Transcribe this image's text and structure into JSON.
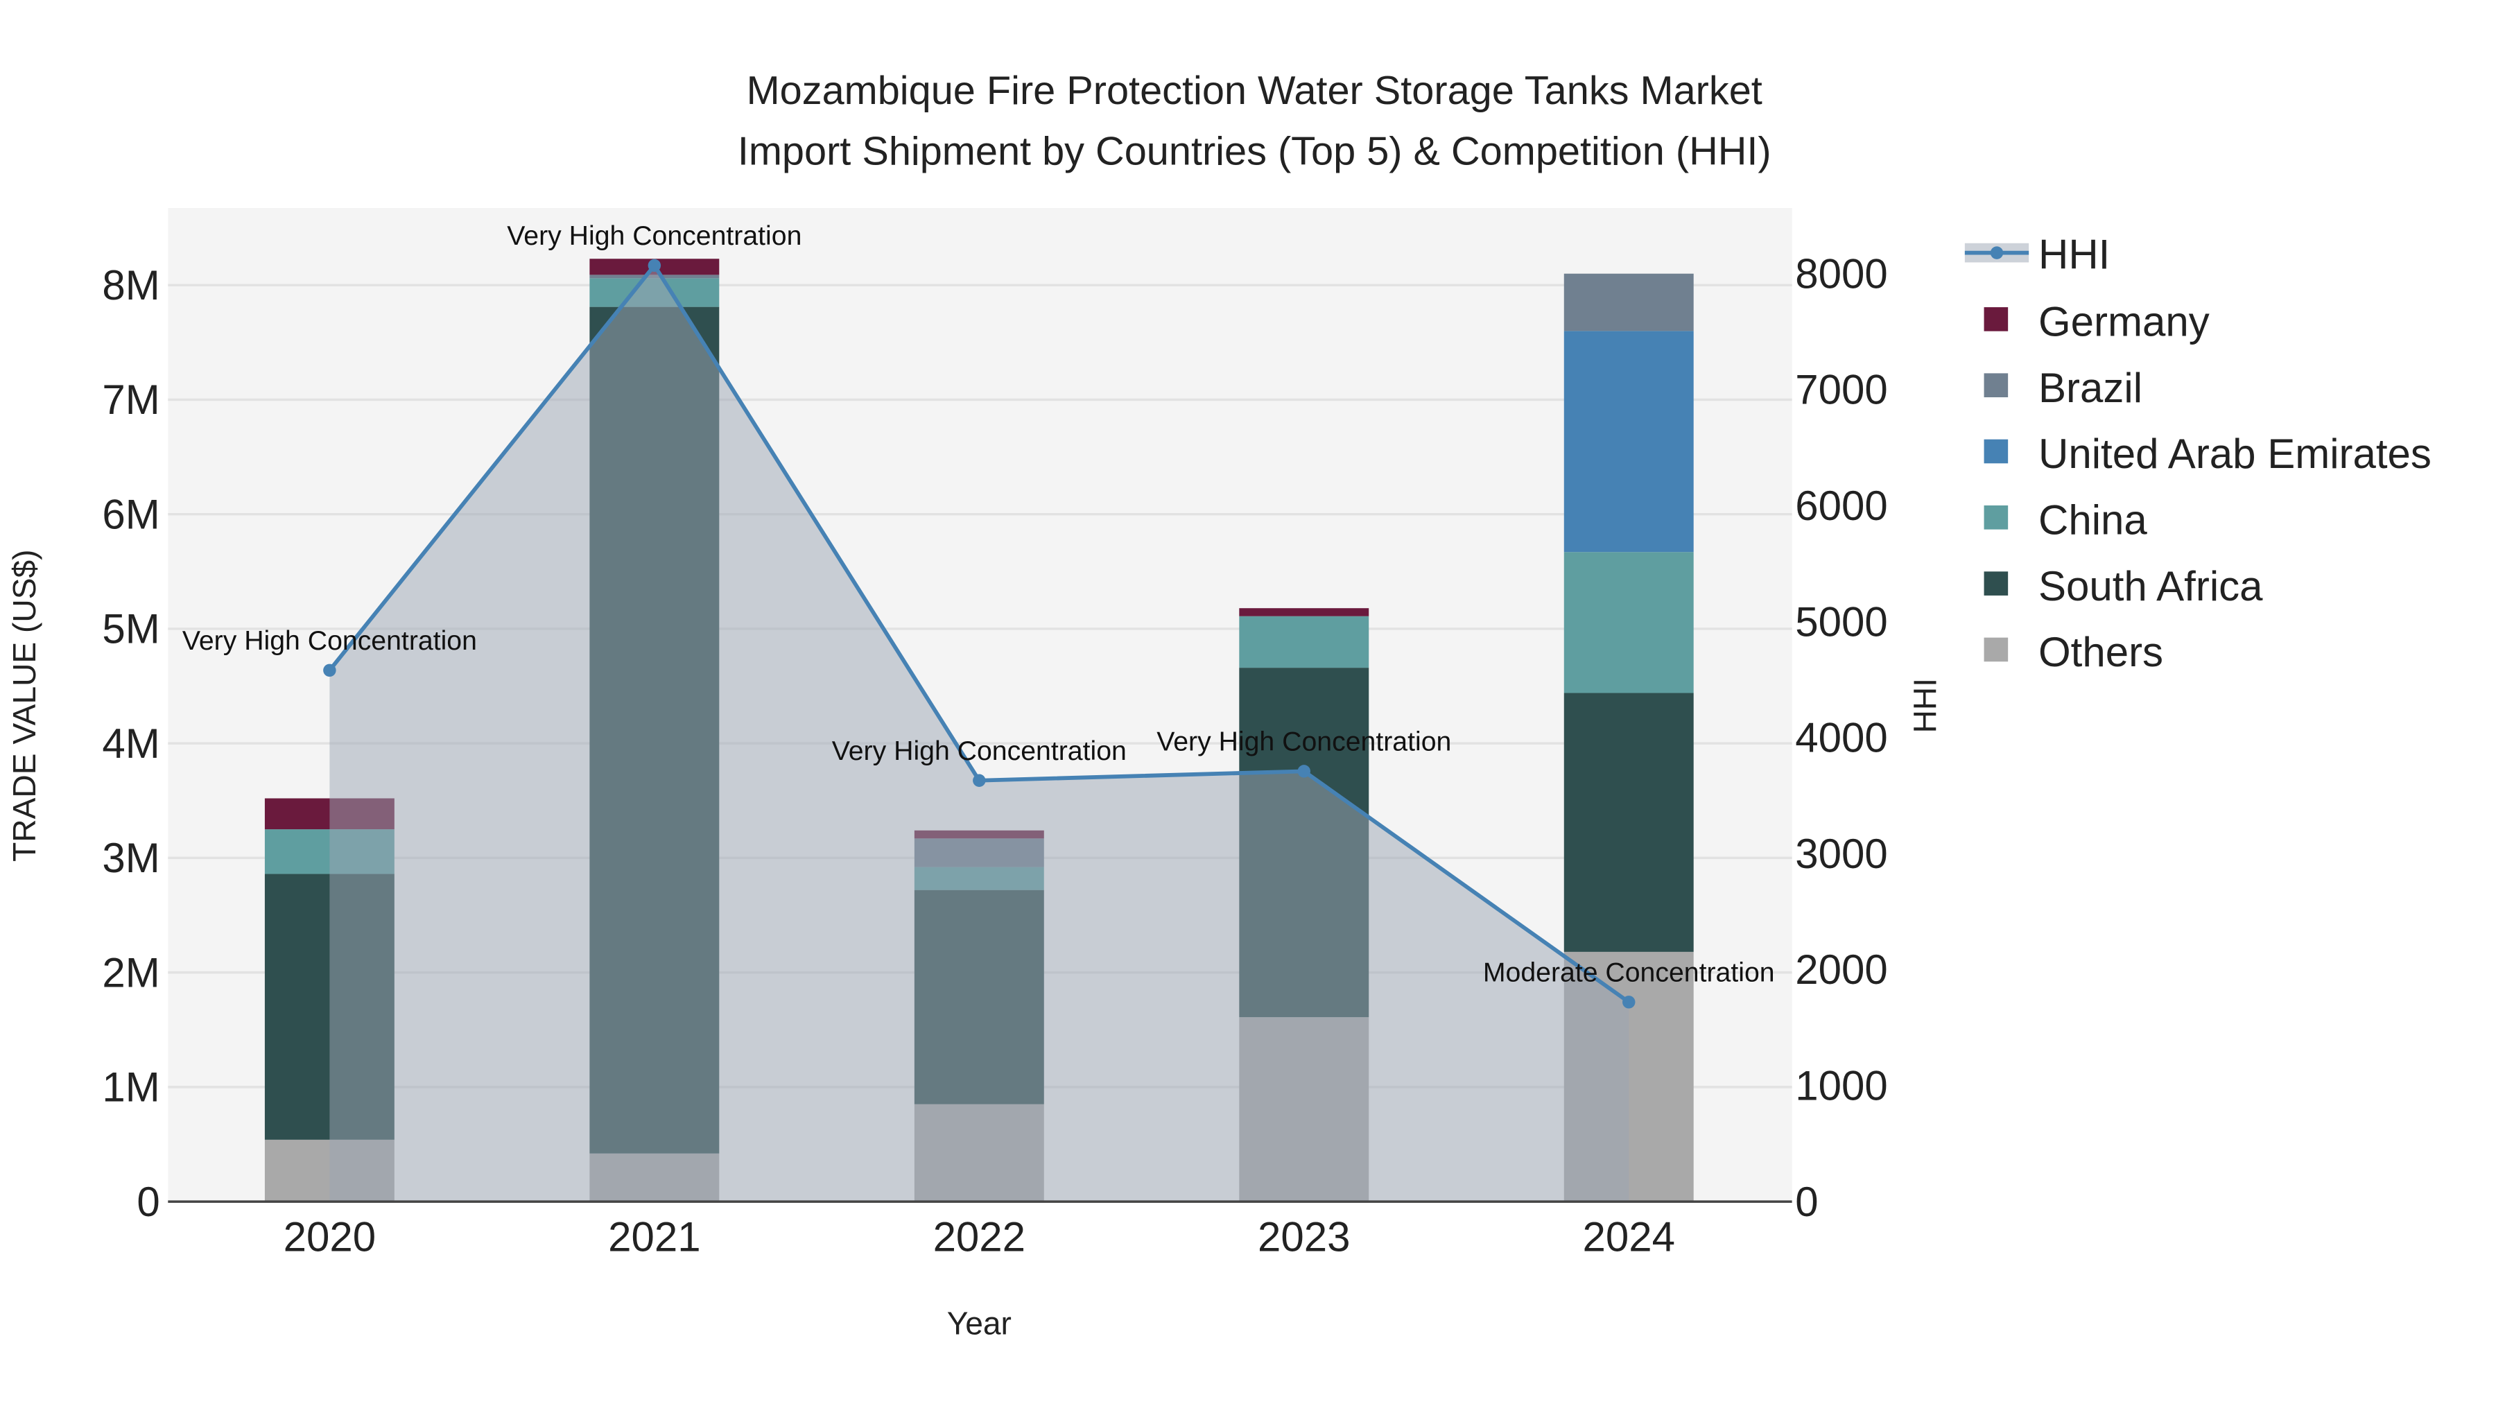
{
  "chart_data": {
    "type": "bar",
    "title_line1": "Mozambique Fire Protection Water Storage Tanks Market",
    "title_line2": "Import Shipment by Countries (Top 5) & Competition (HHI)",
    "xlabel": "Year",
    "ylabel": "TRADE VALUE (US$)",
    "y2label": "HHI",
    "categories": [
      "2020",
      "2021",
      "2022",
      "2023",
      "2024"
    ],
    "ylim": [
      0,
      8600000
    ],
    "y2lim": [
      0,
      8560
    ],
    "yticks": [
      0,
      1000000,
      2000000,
      3000000,
      4000000,
      5000000,
      6000000,
      7000000,
      8000000
    ],
    "ytick_labels": [
      "0",
      "1M",
      "2M",
      "3M",
      "4M",
      "5M",
      "6M",
      "7M",
      "8M"
    ],
    "y2ticks": [
      0,
      1000,
      2000,
      3000,
      4000,
      5000,
      6000,
      7000,
      8000
    ],
    "y2tick_labels": [
      "0",
      "1000",
      "2000",
      "3000",
      "4000",
      "5000",
      "6000",
      "7000",
      "8000"
    ],
    "series": [
      {
        "name": "Others",
        "color": "#a9a9a9",
        "values": [
          540000,
          420000,
          850000,
          1610000,
          2180000
        ]
      },
      {
        "name": "South Africa",
        "color": "#2f4f4f",
        "values": [
          2320000,
          7390000,
          1870000,
          3050000,
          2260000
        ]
      },
      {
        "name": "China",
        "color": "#5f9ea0",
        "values": [
          390000,
          250000,
          200000,
          450000,
          1230000
        ]
      },
      {
        "name": "United Arab Emirates",
        "color": "#4682b4",
        "values": [
          0,
          0,
          0,
          0,
          1930000
        ]
      },
      {
        "name": "Brazil",
        "color": "#708090",
        "values": [
          0,
          30000,
          250000,
          0,
          500000
        ]
      },
      {
        "name": "Germany",
        "color": "#6a1a3d",
        "values": [
          270000,
          140000,
          70000,
          70000,
          0
        ]
      }
    ],
    "hhi": {
      "name": "HHI",
      "color": "#4682b4",
      "values": [
        4580,
        8070,
        3630,
        3710,
        1720
      ],
      "labels": [
        "Very High Concentration",
        "Very High Concentration",
        "Very High Concentration",
        "Very High Concentration",
        "Moderate Concentration"
      ]
    },
    "legend": [
      "HHI",
      "Germany",
      "Brazil",
      "United Arab Emirates",
      "China",
      "South Africa",
      "Others"
    ],
    "legend_position": "right",
    "grid": true
  }
}
